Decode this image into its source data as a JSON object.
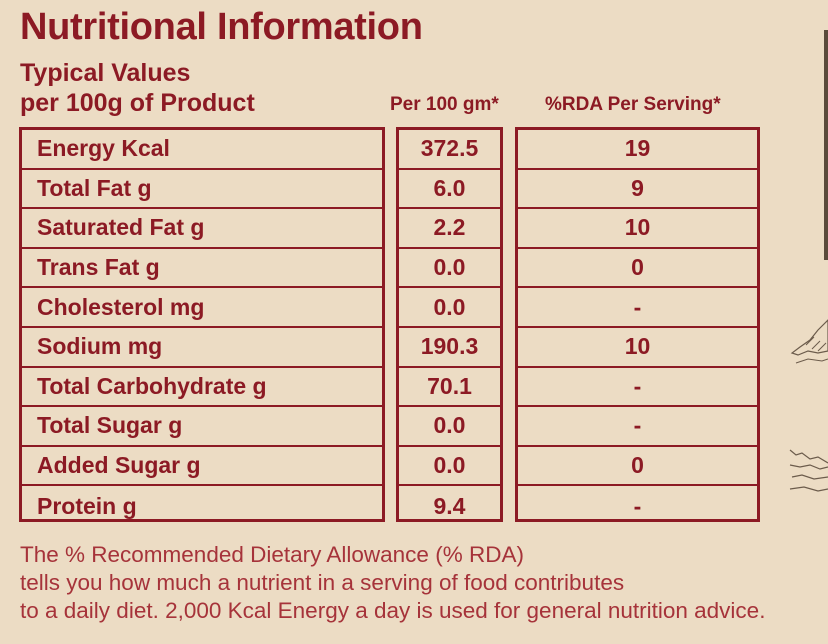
{
  "title": "Nutritional Information",
  "typical": {
    "line1": "Typical Values",
    "line2": "per 100g of Product"
  },
  "headers": {
    "per100": "Per 100 gm*",
    "rda": "%RDA Per Serving*"
  },
  "rows": [
    {
      "name": "Energy Kcal",
      "per100": "372.5",
      "rda": "19"
    },
    {
      "name": "Total Fat g",
      "per100": "6.0",
      "rda": "9"
    },
    {
      "name": "Saturated Fat g",
      "per100": "2.2",
      "rda": "10"
    },
    {
      "name": "Trans Fat g",
      "per100": "0.0",
      "rda": "0"
    },
    {
      "name": "Cholesterol mg",
      "per100": "0.0",
      "rda": "-"
    },
    {
      "name": "Sodium mg",
      "per100": "190.3",
      "rda": "10"
    },
    {
      "name": "Total Carbohydrate g",
      "per100": "70.1",
      "rda": "-"
    },
    {
      "name": "Total Sugar g",
      "per100": "0.0",
      "rda": "-"
    },
    {
      "name": "Added Sugar g",
      "per100": "0.0",
      "rda": "0"
    },
    {
      "name": "Protein g",
      "per100": "9.4",
      "rda": "-"
    }
  ],
  "footnote": {
    "line1": "The % Recommended Dietary Allowance (% RDA)",
    "line2": "tells you how much a nutrient in a serving of food contributes",
    "line3": "to a daily diet. 2,000 Kcal Energy a day is used for general nutrition advice."
  },
  "colors": {
    "background": "#ecdcc4",
    "text": "#8c1a24",
    "footnote": "#a6333a"
  }
}
